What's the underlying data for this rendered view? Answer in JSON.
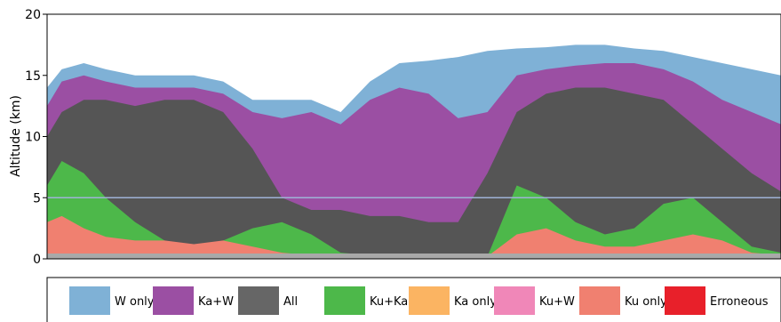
{
  "chart_data": {
    "type": "area",
    "ylabel": "Altitude (km)",
    "ylim": [
      0,
      20
    ],
    "yticks": [
      0,
      5,
      10,
      15,
      20
    ],
    "x": [
      0,
      0.02,
      0.05,
      0.08,
      0.12,
      0.16,
      0.2,
      0.24,
      0.28,
      0.32,
      0.36,
      0.4,
      0.44,
      0.48,
      0.52,
      0.56,
      0.6,
      0.64,
      0.68,
      0.72,
      0.76,
      0.8,
      0.84,
      0.88,
      0.92,
      0.96,
      1.0
    ],
    "series": [
      {
        "name": "Ku only",
        "color": "#f08070",
        "values": [
          3,
          3.5,
          2.5,
          1.8,
          1.5,
          1.5,
          1.2,
          1.5,
          1,
          0.5,
          0.3,
          0.3,
          0.3,
          0.3,
          0.3,
          0.3,
          0.2,
          2,
          2.5,
          1.5,
          1,
          1,
          1.5,
          2,
          1.5,
          0.5,
          0.3
        ]
      },
      {
        "name": "Ku+Ka",
        "color": "#4db84a",
        "values": [
          6,
          8,
          7,
          5,
          3,
          1.5,
          1,
          1.5,
          2.5,
          3,
          2,
          0.5,
          0.3,
          0.3,
          0.3,
          0.3,
          0.2,
          6,
          5,
          3,
          2,
          2.5,
          4.5,
          5,
          3,
          1,
          0.5
        ]
      },
      {
        "name": "All",
        "color": "#555555",
        "values": [
          10,
          12,
          13,
          13,
          12.5,
          13,
          13,
          12,
          9,
          5,
          4,
          4,
          3.5,
          3.5,
          3,
          3,
          7,
          12,
          13.5,
          14,
          14,
          13.5,
          13,
          11,
          9,
          7,
          5.5
        ]
      },
      {
        "name": "Ka+W",
        "color": "#9b4fa3",
        "values": [
          12.5,
          14.5,
          15,
          14.5,
          14,
          14,
          14,
          13.5,
          12,
          11.5,
          12,
          11,
          13,
          14,
          13.5,
          11.5,
          12,
          15,
          15.5,
          15.8,
          16,
          16,
          15.5,
          14.5,
          13,
          12,
          11
        ]
      },
      {
        "name": "W only",
        "color": "#7fb1d6",
        "values": [
          14,
          15.5,
          16,
          15.5,
          15,
          15,
          15,
          14.5,
          13,
          13,
          13,
          12,
          14.5,
          16,
          16.2,
          16.5,
          17,
          17.2,
          17.3,
          17.5,
          17.5,
          17.2,
          17,
          16.5,
          16,
          15.5,
          15
        ]
      }
    ],
    "melting_layer": 5,
    "legend": [
      {
        "label": "W only",
        "color": "#7fb1d6"
      },
      {
        "label": "Ka+W",
        "color": "#9b4fa3"
      },
      {
        "label": "All",
        "color": "#666666"
      },
      {
        "label": "Ku+Ka",
        "color": "#4db84a"
      },
      {
        "label": "Ka only",
        "color": "#fbb462"
      },
      {
        "label": "Ku+W",
        "color": "#f087b8"
      },
      {
        "label": "Ku only",
        "color": "#f08070"
      },
      {
        "label": "Erroneous",
        "color": "#e8202a"
      }
    ],
    "legend_placement": "bottom"
  }
}
